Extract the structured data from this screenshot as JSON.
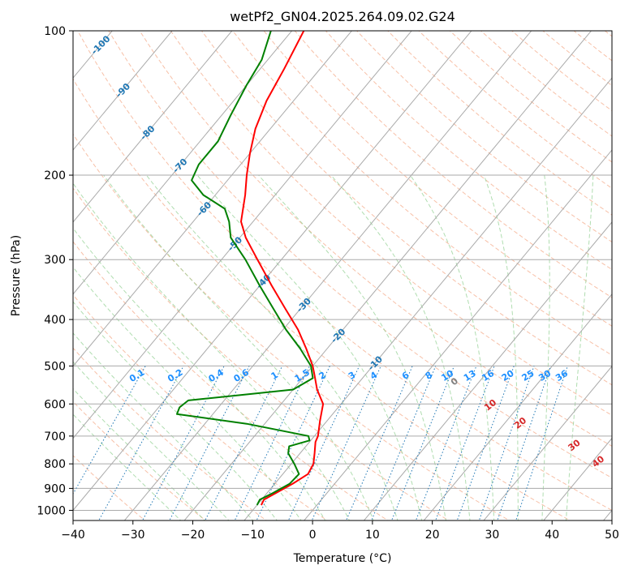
{
  "chart_data": {
    "type": "skew-t",
    "title": "wetPf2_GN04.2025.264.09.02.G24",
    "xlabel": "Temperature (°C)",
    "ylabel": "Pressure (hPa)",
    "xlim": [
      -40,
      50
    ],
    "ylim_hpa": [
      1050,
      100
    ],
    "x_ticks": [
      -40,
      -30,
      -20,
      -10,
      0,
      10,
      20,
      30,
      40,
      50
    ],
    "y_ticks": [
      100,
      200,
      300,
      400,
      500,
      600,
      700,
      800,
      900,
      1000
    ],
    "temperature_profile": {
      "name": "Temperature",
      "color": "#ff0000",
      "points": [
        {
          "p": 975,
          "t": -9.3
        },
        {
          "p": 950,
          "t": -9.6
        },
        {
          "p": 920,
          "t": -8.5
        },
        {
          "p": 880,
          "t": -7.0
        },
        {
          "p": 840,
          "t": -5.8
        },
        {
          "p": 800,
          "t": -6.3
        },
        {
          "p": 760,
          "t": -7.6
        },
        {
          "p": 720,
          "t": -9.0
        },
        {
          "p": 700,
          "t": -9.4
        },
        {
          "p": 650,
          "t": -11.2
        },
        {
          "p": 600,
          "t": -13.0
        },
        {
          "p": 560,
          "t": -16.0
        },
        {
          "p": 520,
          "t": -18.6
        },
        {
          "p": 500,
          "t": -20.0
        },
        {
          "p": 460,
          "t": -23.5
        },
        {
          "p": 420,
          "t": -27.5
        },
        {
          "p": 380,
          "t": -32.5
        },
        {
          "p": 340,
          "t": -38.0
        },
        {
          "p": 300,
          "t": -44.0
        },
        {
          "p": 270,
          "t": -49.0
        },
        {
          "p": 250,
          "t": -52.0
        },
        {
          "p": 220,
          "t": -55.0
        },
        {
          "p": 200,
          "t": -57.5
        },
        {
          "p": 180,
          "t": -60.0
        },
        {
          "p": 160,
          "t": -62.5
        },
        {
          "p": 140,
          "t": -64.5
        },
        {
          "p": 120,
          "t": -66.0
        },
        {
          "p": 100,
          "t": -68.0
        }
      ]
    },
    "dewpoint_profile": {
      "name": "Dewpoint",
      "color": "#008000",
      "points": [
        {
          "p": 975,
          "t": -10.0
        },
        {
          "p": 950,
          "t": -10.3
        },
        {
          "p": 920,
          "t": -9.0
        },
        {
          "p": 880,
          "t": -7.5
        },
        {
          "p": 840,
          "t": -7.3
        },
        {
          "p": 800,
          "t": -9.5
        },
        {
          "p": 760,
          "t": -12.0
        },
        {
          "p": 735,
          "t": -12.8
        },
        {
          "p": 715,
          "t": -10.2
        },
        {
          "p": 700,
          "t": -11.0
        },
        {
          "p": 660,
          "t": -23.0
        },
        {
          "p": 630,
          "t": -36.0
        },
        {
          "p": 610,
          "t": -36.5
        },
        {
          "p": 590,
          "t": -36.0
        },
        {
          "p": 575,
          "t": -28.0
        },
        {
          "p": 560,
          "t": -20.0
        },
        {
          "p": 530,
          "t": -18.3
        },
        {
          "p": 500,
          "t": -20.3
        },
        {
          "p": 460,
          "t": -24.5
        },
        {
          "p": 420,
          "t": -29.5
        },
        {
          "p": 380,
          "t": -34.5
        },
        {
          "p": 340,
          "t": -40.0
        },
        {
          "p": 300,
          "t": -46.0
        },
        {
          "p": 270,
          "t": -51.5
        },
        {
          "p": 250,
          "t": -54.0
        },
        {
          "p": 235,
          "t": -56.5
        },
        {
          "p": 220,
          "t": -62.0
        },
        {
          "p": 205,
          "t": -66.0
        },
        {
          "p": 190,
          "t": -67.0
        },
        {
          "p": 170,
          "t": -67.0
        },
        {
          "p": 150,
          "t": -68.5
        },
        {
          "p": 130,
          "t": -70.0
        },
        {
          "p": 115,
          "t": -71.0
        },
        {
          "p": 100,
          "t": -73.5
        }
      ]
    },
    "isotherm_labels": [
      {
        "t": -100,
        "text": "-100"
      },
      {
        "t": -90,
        "text": "-90"
      },
      {
        "t": -80,
        "text": "-80"
      },
      {
        "t": -70,
        "text": "-70"
      },
      {
        "t": -60,
        "text": "-60"
      },
      {
        "t": -50,
        "text": "-50"
      },
      {
        "t": -40,
        "text": "-40"
      },
      {
        "t": -30,
        "text": "-30"
      },
      {
        "t": -20,
        "text": "-20"
      },
      {
        "t": -10,
        "text": "-10"
      }
    ],
    "mixing_ratio_labels": [
      "0.1",
      "0.2",
      "0.4",
      "0.6",
      "1",
      "1.5",
      "2",
      "3",
      "4",
      "6",
      "8",
      "10",
      "13",
      "16",
      "20",
      "25",
      "30",
      "36"
    ],
    "mixing_ratios_gkg": [
      0.1,
      0.2,
      0.4,
      0.6,
      1,
      1.5,
      2,
      3,
      4,
      6,
      8,
      10,
      13,
      16,
      20,
      25,
      30,
      36
    ],
    "theta_e_labels": [
      {
        "text": "0",
        "color": "#808080"
      },
      {
        "text": "10",
        "color": "#d62728"
      },
      {
        "text": "20",
        "color": "#d62728"
      },
      {
        "text": "30",
        "color": "#d62728"
      },
      {
        "text": "40",
        "color": "#d62728"
      }
    ],
    "legend": "none",
    "grid": true
  },
  "colors": {
    "temperature": "#ff0000",
    "dewpoint": "#008000",
    "isotherm": "#aaaaaa",
    "isobar": "#aaaaaa",
    "dry_adiabat": "#f4a582",
    "moist_adiabat": "#8fcf8f",
    "mixing_ratio": "#1f77b4",
    "isotherm_label": "#1f77b4",
    "mixing_label": "#1e90ff"
  }
}
